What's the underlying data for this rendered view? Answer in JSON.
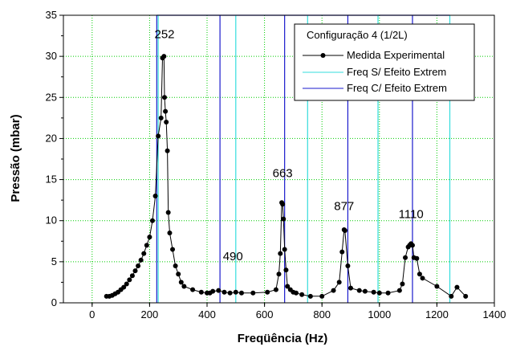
{
  "chart_data": {
    "type": "scatter",
    "title": "",
    "xlabel": "Freqüência (Hz)",
    "ylabel": "Pressão (mbar)",
    "xlim": [
      -100,
      1400
    ],
    "ylim": [
      0,
      35
    ],
    "xticks": [
      0,
      200,
      400,
      600,
      800,
      1000,
      1200,
      1400
    ],
    "yticks": [
      0,
      5,
      10,
      15,
      20,
      25,
      30,
      35
    ],
    "grid": true,
    "legend_position": "top-right",
    "legend_title": "Configuração 4 (1/2L)",
    "colors": {
      "experimental": "#000000",
      "freq_sem_efeito": "#33dddd",
      "freq_com_efeito": "#1a1acc",
      "grid": "#00cc00"
    },
    "series": [
      {
        "name": "Medida Experimental",
        "kind": "line-marker",
        "x": [
          50,
          60,
          70,
          80,
          90,
          100,
          110,
          120,
          130,
          140,
          150,
          160,
          170,
          180,
          190,
          200,
          210,
          220,
          230,
          240,
          245,
          250,
          252,
          255,
          258,
          262,
          265,
          270,
          280,
          290,
          300,
          310,
          320,
          350,
          380,
          400,
          410,
          420,
          440,
          460,
          480,
          500,
          520,
          560,
          610,
          640,
          650,
          655,
          660,
          663,
          666,
          670,
          675,
          680,
          690,
          700,
          710,
          730,
          760,
          800,
          840,
          860,
          870,
          877,
          880,
          890,
          900,
          930,
          950,
          980,
          1000,
          1030,
          1070,
          1080,
          1090,
          1100,
          1105,
          1110,
          1115,
          1120,
          1130,
          1140,
          1150,
          1200,
          1250,
          1270,
          1300
        ],
        "y": [
          0.8,
          0.8,
          0.9,
          1.1,
          1.3,
          1.6,
          1.9,
          2.3,
          2.8,
          3.3,
          3.9,
          4.5,
          5.2,
          6.0,
          7.0,
          8.0,
          10.0,
          13.0,
          20.3,
          22.5,
          29.8,
          30.0,
          25.0,
          23.3,
          22.0,
          18.5,
          11.0,
          8.5,
          6.5,
          4.5,
          3.5,
          2.5,
          2.0,
          1.6,
          1.3,
          1.2,
          1.2,
          1.4,
          1.5,
          1.3,
          1.2,
          1.3,
          1.2,
          1.2,
          1.3,
          1.6,
          3.5,
          6.0,
          12.2,
          12.0,
          10.2,
          6.5,
          4.0,
          2.0,
          1.6,
          1.3,
          1.2,
          1.0,
          0.8,
          0.8,
          1.5,
          2.5,
          6.2,
          8.9,
          8.8,
          4.5,
          1.8,
          1.5,
          1.4,
          1.3,
          1.2,
          1.2,
          1.5,
          2.3,
          5.5,
          6.8,
          7.0,
          7.2,
          7.0,
          5.5,
          5.4,
          3.5,
          3.0,
          2.0,
          0.8,
          1.9,
          0.8
        ]
      },
      {
        "name": "Freq S/ Efeito Extrem",
        "kind": "vertical-lines",
        "x": [
          230,
          500,
          750,
          995,
          1245
        ]
      },
      {
        "name": "Freq C/ Efeito Extrem",
        "kind": "vertical-lines",
        "x": [
          225,
          445,
          670,
          890,
          1115
        ]
      }
    ],
    "annotations": [
      {
        "text": "252",
        "x": 252,
        "y": 32.2
      },
      {
        "text": "490",
        "x": 490,
        "y": 5.2
      },
      {
        "text": "663",
        "x": 663,
        "y": 15.3
      },
      {
        "text": "877",
        "x": 877,
        "y": 11.3
      },
      {
        "text": "1110",
        "x": 1110,
        "y": 10.3
      }
    ]
  }
}
